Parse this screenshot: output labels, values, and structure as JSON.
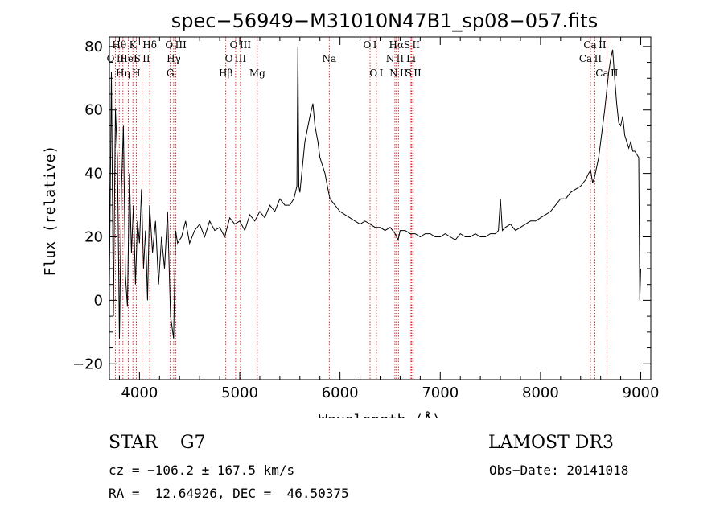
{
  "chart_data": {
    "type": "line",
    "title": "spec−56949−M31010N47B1_sp08−057.fits",
    "xlabel": "Wavelength (Å)",
    "ylabel": "Flux (relative)",
    "xlim": [
      3700,
      9100
    ],
    "ylim": [
      -25,
      83
    ],
    "x_ticks": [
      4000,
      5000,
      6000,
      7000,
      8000,
      9000
    ],
    "y_ticks": [
      -20,
      0,
      20,
      40,
      60,
      80
    ],
    "y_tick_labels": [
      "−20",
      "0",
      "20",
      "40",
      "60",
      "80"
    ],
    "spectrum": {
      "x": [
        3700,
        3720,
        3740,
        3760,
        3780,
        3800,
        3820,
        3840,
        3860,
        3880,
        3900,
        3920,
        3940,
        3960,
        3980,
        4000,
        4020,
        4040,
        4060,
        4080,
        4100,
        4130,
        4160,
        4190,
        4220,
        4250,
        4280,
        4310,
        4340,
        4360,
        4380,
        4420,
        4460,
        4500,
        4550,
        4600,
        4650,
        4700,
        4750,
        4800,
        4850,
        4900,
        4950,
        5000,
        5050,
        5100,
        5150,
        5200,
        5250,
        5300,
        5350,
        5400,
        5450,
        5500,
        5540,
        5570,
        5580,
        5590,
        5600,
        5650,
        5700,
        5730,
        5750,
        5780,
        5800,
        5850,
        5880,
        5900,
        5950,
        6000,
        6050,
        6100,
        6150,
        6200,
        6250,
        6300,
        6350,
        6400,
        6450,
        6500,
        6550,
        6580,
        6600,
        6650,
        6700,
        6750,
        6800,
        6850,
        6900,
        6950,
        7000,
        7050,
        7100,
        7150,
        7200,
        7250,
        7300,
        7350,
        7400,
        7450,
        7500,
        7550,
        7580,
        7600,
        7620,
        7650,
        7700,
        7750,
        7800,
        7850,
        7900,
        7950,
        8000,
        8050,
        8100,
        8150,
        8200,
        8250,
        8300,
        8350,
        8400,
        8450,
        8480,
        8500,
        8520,
        8540,
        8560,
        8580,
        8600,
        8620,
        8640,
        8660,
        8680,
        8700,
        8720,
        8740,
        8760,
        8780,
        8800,
        8820,
        8840,
        8860,
        8880,
        8900,
        8920,
        8940,
        8960,
        8980,
        8990,
        9000
      ],
      "y": [
        5,
        72,
        -5,
        60,
        45,
        -12,
        35,
        55,
        8,
        -2,
        40,
        15,
        30,
        5,
        25,
        18,
        35,
        10,
        22,
        0,
        30,
        15,
        25,
        5,
        20,
        10,
        28,
        -5,
        -12,
        22,
        18,
        20,
        25,
        18,
        22,
        24,
        20,
        25,
        22,
        23,
        20,
        26,
        24,
        25,
        22,
        27,
        25,
        28,
        26,
        30,
        28,
        32,
        30,
        30,
        32,
        36,
        80,
        36,
        34,
        50,
        58,
        62,
        55,
        50,
        45,
        40,
        35,
        32,
        30,
        28,
        27,
        26,
        25,
        24,
        25,
        24,
        23,
        23,
        22,
        23,
        21,
        19,
        22,
        22,
        21,
        21,
        20,
        21,
        21,
        20,
        20,
        21,
        20,
        19,
        21,
        20,
        20,
        21,
        20,
        20,
        21,
        21,
        22,
        32,
        22,
        23,
        24,
        22,
        23,
        24,
        25,
        25,
        26,
        27,
        28,
        30,
        32,
        32,
        34,
        35,
        36,
        38,
        40,
        41,
        37,
        39,
        42,
        45,
        50,
        55,
        60,
        66,
        72,
        76,
        79,
        70,
        62,
        56,
        55,
        58,
        52,
        50,
        48,
        50,
        47,
        47,
        46,
        45,
        0,
        10
      ]
    },
    "lines": [
      {
        "x": 3760,
        "label": "O II",
        "row": 2
      },
      {
        "x": 3798,
        "label": "Hθ",
        "row": 1
      },
      {
        "x": 3835,
        "label": "Hη",
        "row": 3
      },
      {
        "x": 3889,
        "label": "HeI",
        "row": 2
      },
      {
        "x": 3934,
        "label": "K",
        "row": 1
      },
      {
        "x": 3968,
        "label": "H",
        "row": 3
      },
      {
        "x": 4026,
        "label": "S II",
        "row": 2
      },
      {
        "x": 4102,
        "label": "Hδ",
        "row": 1
      },
      {
        "x": 4307,
        "label": "G",
        "row": 3
      },
      {
        "x": 4341,
        "label": "Hγ",
        "row": 2
      },
      {
        "x": 4363,
        "label": "O III",
        "row": 1
      },
      {
        "x": 4861,
        "label": "Hβ",
        "row": 3
      },
      {
        "x": 4959,
        "label": "O III",
        "row": 2
      },
      {
        "x": 5007,
        "label": "O III",
        "row": 1
      },
      {
        "x": 5175,
        "label": "Mg",
        "row": 3
      },
      {
        "x": 5893,
        "label": "Na",
        "row": 2
      },
      {
        "x": 6300,
        "label": "O I",
        "row": 1
      },
      {
        "x": 6363,
        "label": "O I",
        "row": 3
      },
      {
        "x": 6548,
        "label": "N II",
        "row": 2
      },
      {
        "x": 6563,
        "label": "Hα",
        "row": 1
      },
      {
        "x": 6583,
        "label": "N II",
        "row": 3
      },
      {
        "x": 6708,
        "label": "Li",
        "row": 2
      },
      {
        "x": 6716,
        "label": "S II",
        "row": 1
      },
      {
        "x": 6731,
        "label": "S II",
        "row": 3
      },
      {
        "x": 8498,
        "label": "Ca II",
        "row": 2
      },
      {
        "x": 8542,
        "label": "Ca II",
        "row": 1
      },
      {
        "x": 8662,
        "label": "Ca II",
        "row": 3
      }
    ]
  },
  "info": {
    "class_text": "STAR    G7",
    "survey_text": "LAMOST DR3",
    "cz_text": "cz = −106.2 ± 167.5 km/s",
    "obs_date_text": "Obs−Date: 20141018",
    "radec_text": "RA =  12.64926, DEC =  46.50375"
  },
  "colors": {
    "line_marker": "#cc0000",
    "spectrum": "#000000",
    "axes": "#000000"
  }
}
